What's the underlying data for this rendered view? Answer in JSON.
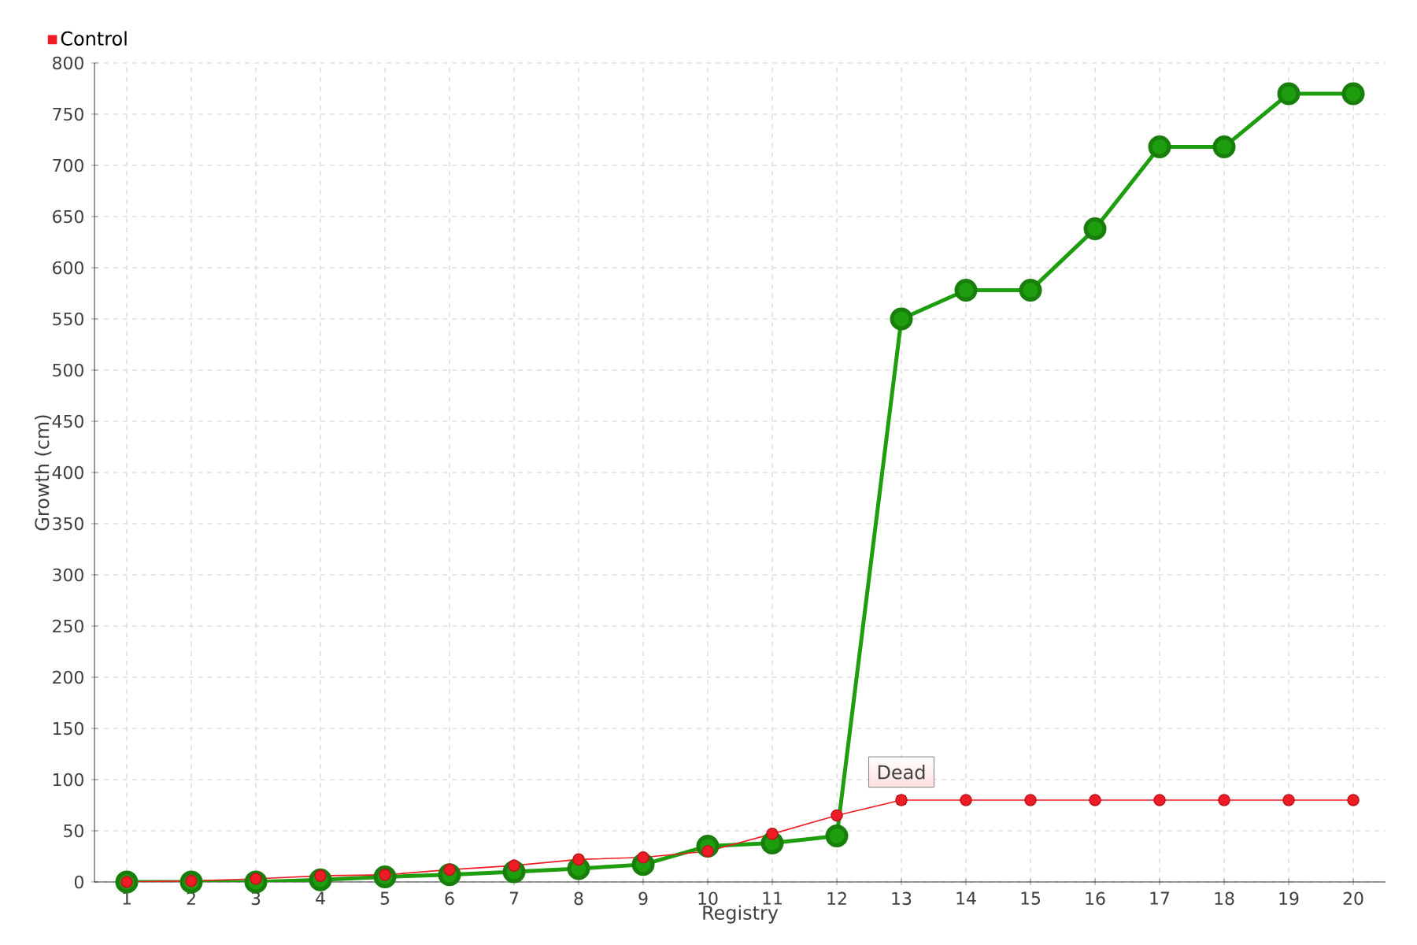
{
  "chart_data": {
    "type": "line",
    "xlabel": "Registry",
    "ylabel": "Growth (cm)",
    "categories": [
      "1",
      "2",
      "3",
      "4",
      "5",
      "6",
      "7",
      "8",
      "9",
      "10",
      "11",
      "12",
      "13",
      "14",
      "15",
      "16",
      "17",
      "18",
      "19",
      "20"
    ],
    "series": [
      {
        "color": "#1e9e0f",
        "values": [
          0,
          0,
          0,
          2,
          5,
          7,
          10,
          13,
          17,
          35,
          38,
          45,
          550,
          578,
          578,
          638,
          718,
          718,
          770,
          770
        ]
      },
      {
        "name": "Control",
        "color": "#ee1c25",
        "values": [
          0,
          1,
          3,
          6,
          7,
          12,
          16,
          22,
          24,
          30,
          47,
          65,
          80,
          80,
          80,
          80,
          80,
          80,
          80,
          80
        ]
      }
    ],
    "ylim": [
      0,
      800
    ],
    "yticks": [
      0,
      50,
      100,
      150,
      200,
      250,
      300,
      350,
      400,
      450,
      500,
      550,
      600,
      650,
      700,
      750,
      800
    ],
    "grid": true,
    "legend": "top left",
    "marker": "circle",
    "line_style": "solid",
    "annotations": [
      {
        "text": "Dead",
        "x": "13",
        "y": 80
      }
    ]
  }
}
